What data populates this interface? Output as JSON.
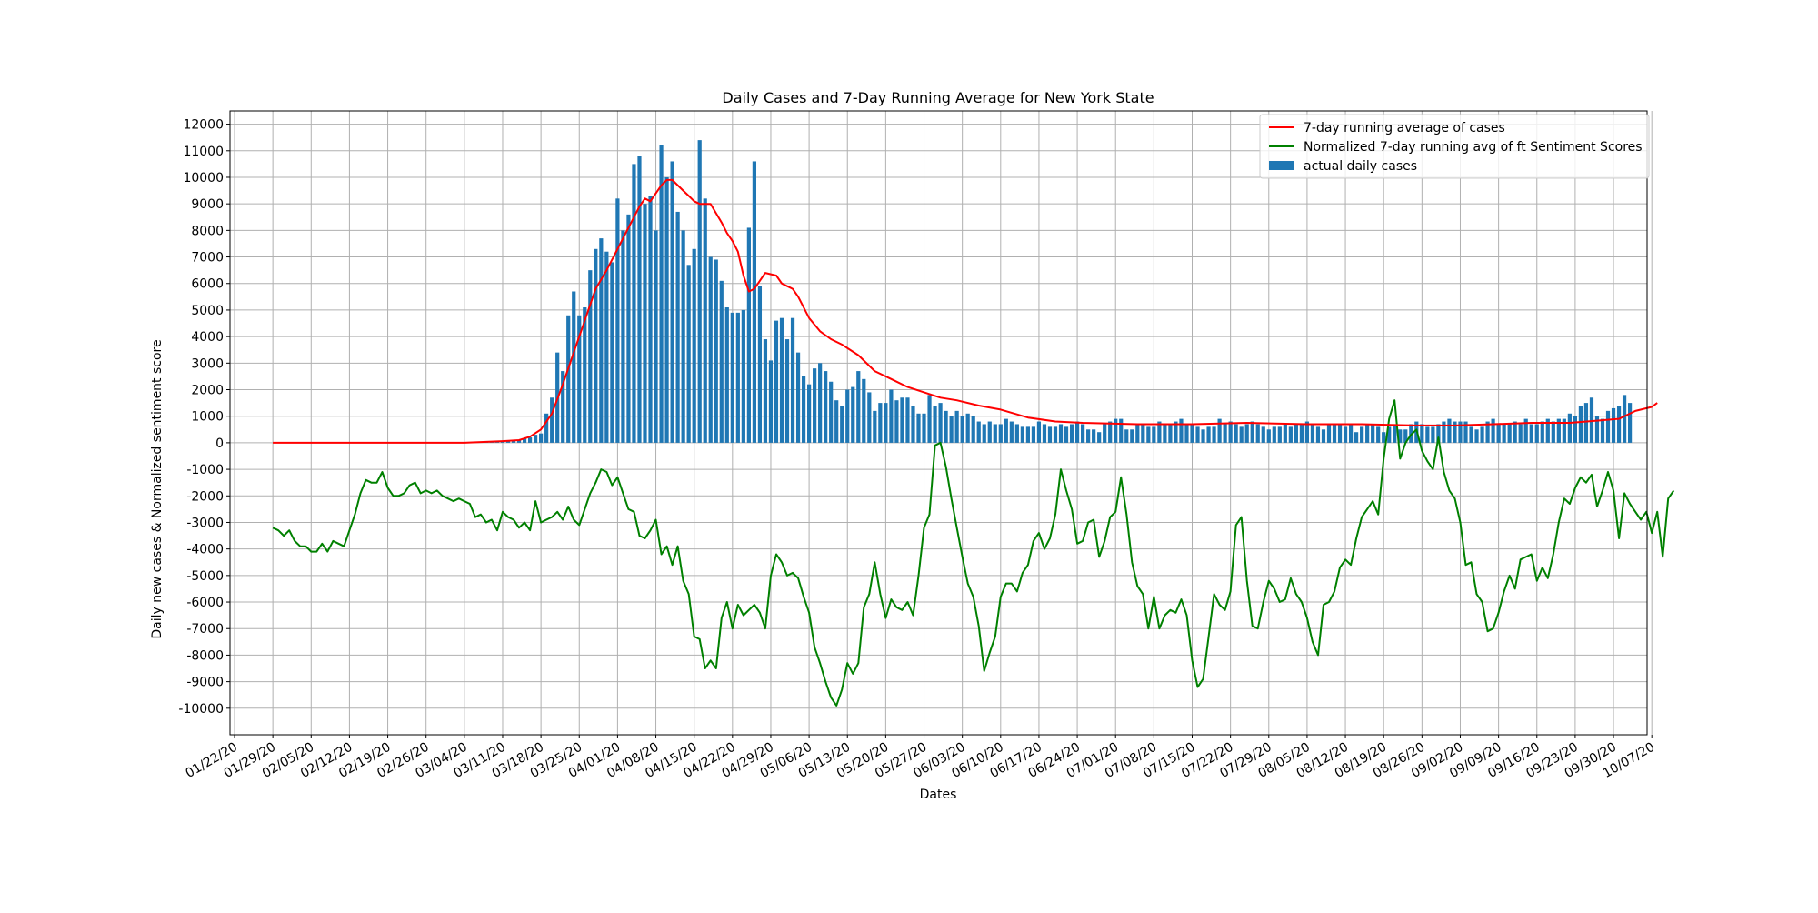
{
  "chart_data": {
    "type": "bar",
    "title": "Daily Cases and 7-Day Running Average for New York State",
    "xlabel": "Dates",
    "ylabel": "Daily new cases & Normalized sentiment score",
    "ylim": [
      -11000,
      12500
    ],
    "yticks": [
      -10000,
      -9000,
      -8000,
      -7000,
      -6000,
      -5000,
      -4000,
      -3000,
      -2000,
      -1000,
      0,
      1000,
      2000,
      3000,
      4000,
      5000,
      6000,
      7000,
      8000,
      9000,
      10000,
      11000,
      12000
    ],
    "grid": true,
    "legend_position": "top-right",
    "x_start_date": "2020-01-22",
    "xticks": [
      "01/22/20",
      "01/29/20",
      "02/05/20",
      "02/12/20",
      "02/19/20",
      "02/26/20",
      "03/04/20",
      "03/11/20",
      "03/18/20",
      "03/25/20",
      "04/01/20",
      "04/08/20",
      "04/15/20",
      "04/22/20",
      "04/29/20",
      "05/06/20",
      "05/13/20",
      "05/20/20",
      "05/27/20",
      "06/03/20",
      "06/10/20",
      "06/17/20",
      "06/24/20",
      "07/01/20",
      "07/08/20",
      "07/15/20",
      "07/22/20",
      "07/29/20",
      "08/05/20",
      "08/12/20",
      "08/19/20",
      "08/26/20",
      "09/02/20",
      "09/09/20",
      "09/16/20",
      "09/23/20",
      "09/30/20",
      "10/07/20"
    ],
    "legend": [
      {
        "label": "7-day running average of cases",
        "kind": "line",
        "color": "#ff0000"
      },
      {
        "label": "Normalized 7-day running avg of ft Sentiment Scores",
        "kind": "line",
        "color": "#008000"
      },
      {
        "label": "actual daily cases",
        "kind": "bar",
        "color": "#1f77b4"
      }
    ],
    "series": [
      {
        "name": "actual daily cases",
        "kind": "bar",
        "color": "#1f77b4",
        "x_start": "2020-03-05",
        "values": [
          4,
          4,
          7,
          12,
          20,
          30,
          40,
          60,
          80,
          100,
          150,
          200,
          300,
          350,
          1100,
          1700,
          3400,
          2700,
          4800,
          5700,
          4800,
          5100,
          6500,
          7300,
          7700,
          7200,
          6800,
          9200,
          8000,
          8600,
          10500,
          10800,
          9000,
          9300,
          8000,
          11200,
          10000,
          10600,
          8700,
          8000,
          6700,
          7300,
          11400,
          9200,
          7000,
          6900,
          6100,
          5100,
          4900,
          4900,
          5000,
          8100,
          10600,
          5900,
          3900,
          3100,
          4600,
          4700,
          3900,
          4700,
          3400,
          2500,
          2200,
          2800,
          3000,
          2700,
          2300,
          1600,
          1400,
          2000,
          2100,
          2700,
          2400,
          1900,
          1200,
          1500,
          1500,
          2000,
          1600,
          1700,
          1700,
          1400,
          1100,
          1100,
          1800,
          1400,
          1500,
          1200,
          1000,
          1200,
          1000,
          1100,
          1000,
          800,
          700,
          800,
          700,
          700,
          900,
          800,
          700,
          600,
          600,
          600,
          800,
          700,
          600,
          600,
          700,
          600,
          700,
          800,
          700,
          500,
          500,
          400,
          700,
          800,
          900,
          900,
          500,
          500,
          700,
          700,
          600,
          600,
          800,
          700,
          700,
          800,
          900,
          700,
          700,
          600,
          500,
          600,
          600,
          900,
          700,
          800,
          700,
          600,
          700,
          800,
          700,
          600,
          500,
          600,
          600,
          700,
          600,
          700,
          700,
          800,
          700,
          600,
          500,
          700,
          700,
          700,
          600,
          700,
          400,
          600,
          700,
          700,
          600,
          400,
          600,
          700,
          500,
          500,
          700,
          800,
          700,
          600,
          600,
          700,
          800,
          900,
          800,
          800,
          800,
          600,
          500,
          600,
          800,
          900,
          700,
          700,
          700,
          800,
          700,
          900,
          700,
          700,
          800,
          900,
          800,
          900,
          900,
          1100,
          1000,
          1400,
          1500,
          1700,
          1000,
          900,
          1200,
          1300,
          1400,
          1800,
          1500
        ]
      },
      {
        "name": "7-day running average of cases",
        "kind": "line",
        "color": "#ff0000",
        "x": [
          "2020-01-29",
          "2020-02-19",
          "2020-03-04",
          "2020-03-11",
          "2020-03-14",
          "2020-03-16",
          "2020-03-18",
          "2020-03-20",
          "2020-03-22",
          "2020-03-24",
          "2020-03-26",
          "2020-03-28",
          "2020-03-30",
          "2020-04-01",
          "2020-04-03",
          "2020-04-05",
          "2020-04-06",
          "2020-04-07",
          "2020-04-09",
          "2020-04-10",
          "2020-04-11",
          "2020-04-13",
          "2020-04-14",
          "2020-04-15",
          "2020-04-16",
          "2020-04-18",
          "2020-04-20",
          "2020-04-21",
          "2020-04-22",
          "2020-04-23",
          "2020-04-24",
          "2020-04-25",
          "2020-04-26",
          "2020-04-28",
          "2020-04-30",
          "2020-05-01",
          "2020-05-02",
          "2020-05-03",
          "2020-05-04",
          "2020-05-06",
          "2020-05-08",
          "2020-05-10",
          "2020-05-12",
          "2020-05-15",
          "2020-05-18",
          "2020-05-21",
          "2020-05-24",
          "2020-05-27",
          "2020-05-30",
          "2020-06-02",
          "2020-06-06",
          "2020-06-10",
          "2020-06-15",
          "2020-06-20",
          "2020-06-25",
          "2020-07-05",
          "2020-07-15",
          "2020-07-25",
          "2020-08-05",
          "2020-08-15",
          "2020-08-25",
          "2020-09-01",
          "2020-09-08",
          "2020-09-15",
          "2020-09-22",
          "2020-09-28",
          "2020-10-01",
          "2020-10-04",
          "2020-10-07",
          "2020-10-08"
        ],
        "y": [
          0,
          0,
          0,
          60,
          100,
          230,
          500,
          1100,
          2200,
          3400,
          4600,
          5800,
          6500,
          7300,
          8100,
          8900,
          9200,
          9100,
          9700,
          9900,
          9900,
          9500,
          9300,
          9100,
          9000,
          9000,
          8300,
          7900,
          7600,
          7200,
          6300,
          5700,
          5800,
          6400,
          6300,
          6000,
          5900,
          5800,
          5500,
          4700,
          4200,
          3900,
          3700,
          3300,
          2700,
          2400,
          2100,
          1900,
          1700,
          1600,
          1400,
          1250,
          950,
          800,
          750,
          700,
          700,
          750,
          700,
          700,
          650,
          650,
          700,
          750,
          750,
          850,
          900,
          1200,
          1350,
          1500
        ]
      },
      {
        "name": "Normalized 7-day running avg of ft Sentiment Scores",
        "kind": "line",
        "color": "#008000",
        "x_start": "2020-01-29",
        "values": [
          -3200,
          -3300,
          -3500,
          -3300,
          -3700,
          -3900,
          -3900,
          -4100,
          -4100,
          -3800,
          -4100,
          -3700,
          -3800,
          -3900,
          -3300,
          -2700,
          -1900,
          -1400,
          -1500,
          -1500,
          -1100,
          -1700,
          -2000,
          -2000,
          -1900,
          -1600,
          -1500,
          -1900,
          -1800,
          -1900,
          -1800,
          -2000,
          -2100,
          -2200,
          -2100,
          -2200,
          -2300,
          -2800,
          -2700,
          -3000,
          -2900,
          -3300,
          -2600,
          -2800,
          -2900,
          -3200,
          -3000,
          -3300,
          -2200,
          -3000,
          -2900,
          -2800,
          -2600,
          -2900,
          -2400,
          -2900,
          -3100,
          -2500,
          -1900,
          -1500,
          -1000,
          -1100,
          -1600,
          -1300,
          -1900,
          -2500,
          -2600,
          -3500,
          -3600,
          -3300,
          -2900,
          -4200,
          -3900,
          -4600,
          -3900,
          -5200,
          -5700,
          -7300,
          -7400,
          -8500,
          -8200,
          -8500,
          -6600,
          -6000,
          -7000,
          -6100,
          -6500,
          -6300,
          -6100,
          -6400,
          -7000,
          -5000,
          -4200,
          -4500,
          -5000,
          -4900,
          -5100,
          -5800,
          -6400,
          -7700,
          -8300,
          -9000,
          -9600,
          -9900,
          -9300,
          -8300,
          -8700,
          -8300,
          -6200,
          -5700,
          -4500,
          -5700,
          -6600,
          -5900,
          -6200,
          -6300,
          -6000,
          -6500,
          -5000,
          -3200,
          -2700,
          -100,
          0,
          -900,
          -2100,
          -3200,
          -4300,
          -5300,
          -5800,
          -6900,
          -8600,
          -7900,
          -7300,
          -5800,
          -5300,
          -5300,
          -5600,
          -4900,
          -4600,
          -3700,
          -3400,
          -4000,
          -3600,
          -2700,
          -1000,
          -1800,
          -2500,
          -3800,
          -3700,
          -3000,
          -2900,
          -4300,
          -3700,
          -2800,
          -2600,
          -1300,
          -2700,
          -4500,
          -5400,
          -5700,
          -7000,
          -5800,
          -7000,
          -6500,
          -6300,
          -6400,
          -5900,
          -6500,
          -8200,
          -9200,
          -8900,
          -7300,
          -5700,
          -6100,
          -6300,
          -5600,
          -3100,
          -2800,
          -5200,
          -6900,
          -7000,
          -6000,
          -5200,
          -5500,
          -6000,
          -5900,
          -5100,
          -5700,
          -6000,
          -6600,
          -7500,
          -8000,
          -6100,
          -6000,
          -5600,
          -4700,
          -4400,
          -4600,
          -3600,
          -2800,
          -2500,
          -2200,
          -2700,
          -600,
          900,
          1600,
          -600,
          0,
          300,
          500,
          -300,
          -700,
          -1000,
          200,
          -1100,
          -1800,
          -2100,
          -3000,
          -4600,
          -4500,
          -5700,
          -6000,
          -7100,
          -7000,
          -6400,
          -5600,
          -5000,
          -5500,
          -4400,
          -4300,
          -4200,
          -5200,
          -4700,
          -5100,
          -4200,
          -3000,
          -2100,
          -2300,
          -1700,
          -1300,
          -1500,
          -1200,
          -2400,
          -1800,
          -1100,
          -1800,
          -3600,
          -1900,
          -2300,
          -2600,
          -2900,
          -2600,
          -3400,
          -2600,
          -4300,
          -2100,
          -1800
        ]
      }
    ]
  }
}
